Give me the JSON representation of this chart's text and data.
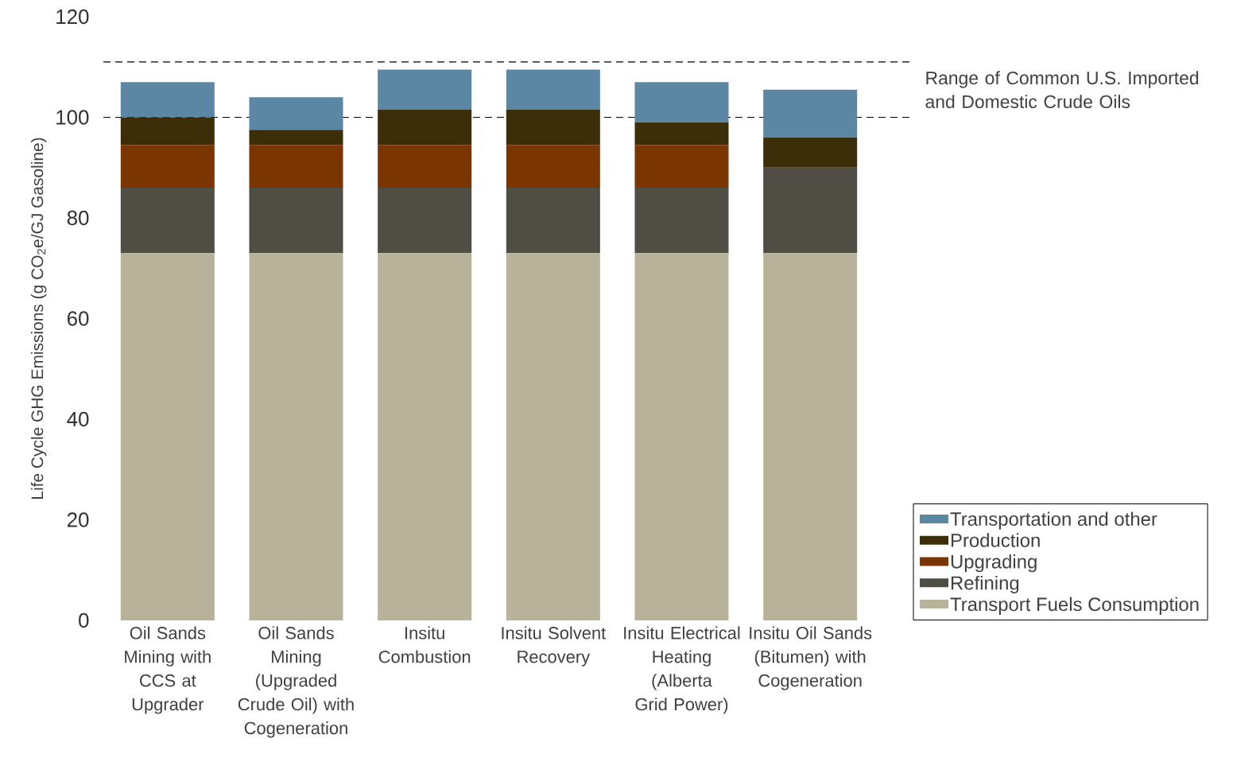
{
  "chart_data": {
    "type": "bar",
    "stacked": true,
    "ylabel": "Life Cycle GHG Emissions (g CO$_{2}$e/GJ Gasoline)",
    "categories": [
      "Oil Sands Mining with CCS at Upgrader",
      "Oil Sands Mining (Upgraded Crude Oil) with Cogeneration",
      "Insitu Combustion",
      "Insitu Solvent Recovery",
      "Insitu Electrical Heating (Alberta Grid Power)",
      "Insitu Oil Sands (Bitumen) with Cogeneration"
    ],
    "series": [
      {
        "name": "Transport Fuels Consumption",
        "color": "#b9b29a",
        "values": [
          73,
          73,
          73,
          73,
          73,
          73
        ]
      },
      {
        "name": "Refining",
        "color": "#4f4d44",
        "values": [
          13,
          13,
          13,
          13,
          13,
          17
        ]
      },
      {
        "name": "Upgrading",
        "color": "#7a3500",
        "values": [
          8.5,
          8.5,
          8.5,
          8.5,
          8.5,
          0
        ]
      },
      {
        "name": "Production",
        "color": "#3d2e0a",
        "values": [
          5.5,
          3,
          7,
          7,
          4.5,
          6
        ]
      },
      {
        "name": "Transportation and other",
        "color": "#5b87a4",
        "values": [
          7,
          6.5,
          8,
          8,
          8,
          9.5
        ]
      }
    ],
    "ylim": [
      0,
      120
    ],
    "yticks": [
      0,
      20,
      40,
      60,
      80,
      100,
      120
    ],
    "ref_lines": [
      {
        "axis": "y",
        "value": 111,
        "color": "#000000",
        "line_style": "dashed"
      },
      {
        "axis": "y",
        "value": 100,
        "color": "#000000",
        "line_style": "dashed"
      }
    ],
    "annotations": [
      "Range of Common U.S. Imported and Domestic Crude Oils"
    ],
    "legend": "bottom right",
    "grid": false
  }
}
